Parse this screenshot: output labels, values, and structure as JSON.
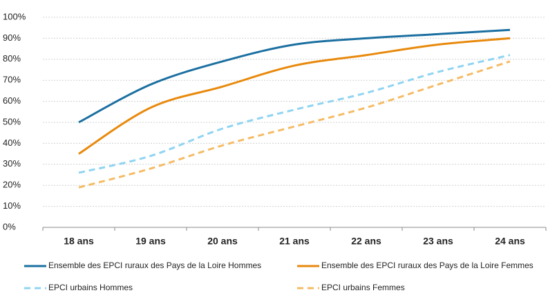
{
  "chart_data": {
    "type": "line",
    "categories": [
      "18 ans",
      "19 ans",
      "20 ans",
      "21 ans",
      "22 ans",
      "23 ans",
      "24 ans"
    ],
    "series": [
      {
        "name": "Ensemble des EPCI ruraux des Pays de la Loire Hommes",
        "color": "#1b6fa1",
        "dashed": false,
        "values": [
          50,
          68,
          79,
          87,
          90,
          92,
          94
        ]
      },
      {
        "name": "Ensemble des EPCI ruraux des Pays de la Loire Femmes",
        "color": "#e8890c",
        "dashed": false,
        "values": [
          35,
          57,
          67,
          77,
          82,
          87,
          90
        ]
      },
      {
        "name": "EPCI urbains Hommes",
        "color": "#8fd4f2",
        "dashed": true,
        "values": [
          26,
          34,
          47,
          56,
          64,
          74,
          82
        ]
      },
      {
        "name": "EPCI urbains Femmes",
        "color": "#f5bb64",
        "dashed": true,
        "values": [
          19,
          28,
          39,
          48,
          57,
          68,
          79
        ]
      }
    ],
    "ylim": [
      0,
      100
    ],
    "yticks": [
      {
        "value": 0,
        "label": "0%"
      },
      {
        "value": 10,
        "label": "10%"
      },
      {
        "value": 20,
        "label": "20%"
      },
      {
        "value": 30,
        "label": "30%"
      },
      {
        "value": 40,
        "label": "40%"
      },
      {
        "value": 50,
        "label": "50%"
      },
      {
        "value": 60,
        "label": "60%"
      },
      {
        "value": 70,
        "label": "70%"
      },
      {
        "value": 80,
        "label": "80%"
      },
      {
        "value": 90,
        "label": "90%"
      },
      {
        "value": 100,
        "label": "100%"
      }
    ],
    "grid": true,
    "legend": "bottom"
  }
}
